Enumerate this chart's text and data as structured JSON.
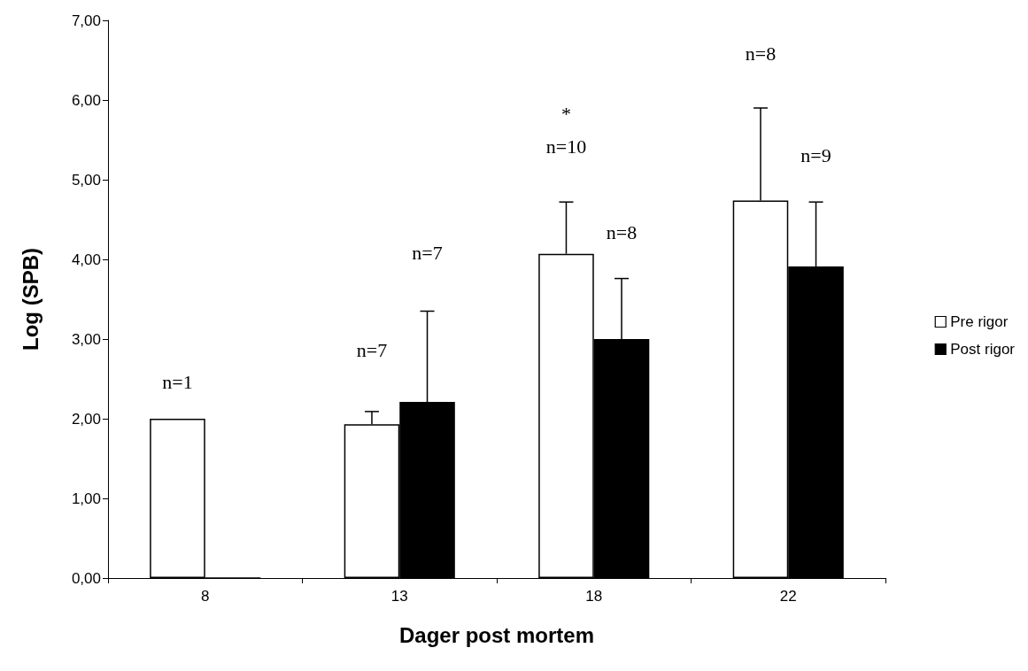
{
  "chart_data": {
    "type": "bar",
    "xlabel": "Dager post mortem",
    "ylabel": "Log (SPB)",
    "categories": [
      "8",
      "13",
      "18",
      "22"
    ],
    "series": [
      {
        "name": "Pre rigor",
        "color": "#ffffff",
        "values": [
          2.0,
          1.93,
          4.07,
          4.74
        ],
        "errors": [
          null,
          [
            1.93,
            2.09
          ],
          [
            4.07,
            4.72
          ],
          [
            4.74,
            5.9
          ]
        ]
      },
      {
        "name": "Post rigor",
        "color": "#000000",
        "values": [
          0,
          2.21,
          3.0,
          3.91
        ],
        "errors": [
          null,
          [
            2.21,
            3.35
          ],
          [
            3.0,
            3.76
          ],
          [
            3.91,
            4.72
          ]
        ]
      }
    ],
    "ylim": [
      0,
      7
    ],
    "yticks": [
      {
        "value": 0,
        "label": "0,00"
      },
      {
        "value": 1,
        "label": "1,00"
      },
      {
        "value": 2,
        "label": "2,00"
      },
      {
        "value": 3,
        "label": "3,00"
      },
      {
        "value": 4,
        "label": "4,00"
      },
      {
        "value": 5,
        "label": "5,00"
      },
      {
        "value": 6,
        "label": "6,00"
      },
      {
        "value": 7,
        "label": "7,00"
      }
    ],
    "grid": false,
    "legend": "right",
    "annotations": [
      "n=1",
      "n=7",
      "n=7",
      "*",
      "n=10",
      "n=8",
      "n=8",
      "n=9"
    ]
  }
}
